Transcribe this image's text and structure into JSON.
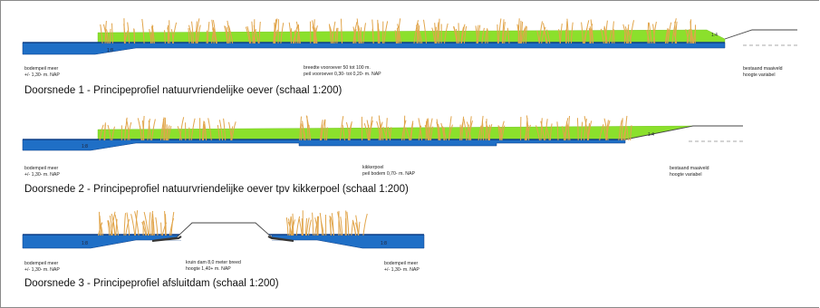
{
  "colors": {
    "water": "#1f6fc6",
    "water_dark": "#0f3f86",
    "vegetation": "#8be02c",
    "reed": "#e1a54b",
    "dam_line": "#444444",
    "text": "#111111"
  },
  "sections": [
    {
      "title": "Doorsnede 1 - Principeprofiel natuurvriendelijke oever (schaal 1:200)",
      "slope_left": "1:8",
      "slope_right": "1:4",
      "labels": [
        {
          "line1": "bodempeil meer",
          "line2": "+/- 1,30- m. NAP"
        },
        {
          "line1": "breedte vooroever 50 tot 100 m.",
          "line2": "peil vooroever  0,30- tot 0,20- m. NAP"
        },
        {
          "line1": "bestaand maaiveld",
          "line2": "hoogte variabel"
        }
      ]
    },
    {
      "title": "Doorsnede 2 - Principeprofiel natuurvriendelijke oever tpv kikkerpoel (schaal 1:200)",
      "slope_left": "1:8",
      "slope_right": "1:4",
      "labels": [
        {
          "line1": "bodempeil meer",
          "line2": "+/- 1,30- m. NAP"
        },
        {
          "line1": "kikkerpoel",
          "line2": "peil bodem 0,70- m. NAP"
        },
        {
          "line1": "bestaand maaiveld",
          "line2": "hoogte variabel"
        }
      ]
    },
    {
      "title": "Doorsnede 3 - Principeprofiel afsluitdam (schaal 1:200)",
      "slope_left": "1:8",
      "slope_right": "1:8",
      "labels": [
        {
          "line1": "bodempeil meer",
          "line2": "+/- 1,30- m. NAP"
        },
        {
          "line1": "kruin dam 8,0 meter breed",
          "line2": "hoogte 1,40+ m. NAP"
        },
        {
          "line1": "bodempeil meer",
          "line2": "+/- 1,30- m. NAP"
        }
      ]
    }
  ]
}
